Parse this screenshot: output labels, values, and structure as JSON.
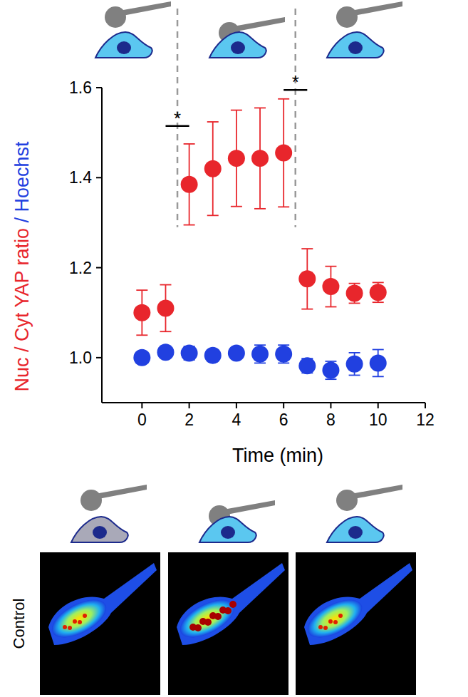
{
  "chart_data": {
    "type": "scatter",
    "xlabel": "Time (min)",
    "ylabel_parts": [
      {
        "text": "Nuc / Cyt YAP ratio",
        "color": "#e8262c"
      },
      {
        "text": " / Hoechst",
        "color": "#2140e0"
      }
    ],
    "xlim": [
      -1.7,
      12
    ],
    "ylim": [
      0.9,
      1.6
    ],
    "xticks": [
      0,
      2,
      4,
      6,
      8,
      10,
      12
    ],
    "yticks": [
      {
        "value": 1,
        "label": "1.0"
      },
      1.2,
      1.4,
      1.6
    ],
    "grid": false,
    "marker": "circle",
    "x": [
      0,
      1,
      2,
      3,
      4,
      5,
      6,
      7,
      8,
      9,
      10
    ],
    "series": [
      {
        "name": "Nuc / Cyt YAP ratio",
        "color": "#e8262c",
        "values": [
          1.1,
          1.11,
          1.385,
          1.42,
          1.443,
          1.443,
          1.455,
          1.175,
          1.158,
          1.143,
          1.145
        ],
        "errors": [
          0.05,
          0.052,
          0.09,
          0.104,
          0.107,
          0.112,
          0.12,
          0.067,
          0.045,
          0.022,
          0.022
        ]
      },
      {
        "name": "Hoechst",
        "color": "#2140e0",
        "values": [
          1.0,
          1.012,
          1.01,
          1.005,
          1.01,
          1.008,
          1.008,
          0.982,
          0.972,
          0.986,
          0.988
        ],
        "errors": [
          0.006,
          0.01,
          0.015,
          0.01,
          0.012,
          0.02,
          0.02,
          0.016,
          0.02,
          0.025,
          0.03
        ]
      }
    ],
    "vlines": {
      "x": [
        1.5,
        6.5
      ],
      "ymin": 1.29
    },
    "significance": [
      {
        "text": "*",
        "x0": 1,
        "x1": 2,
        "y": 1.515
      },
      {
        "text": "*",
        "x0": 6,
        "x1": 7,
        "y": 1.595
      }
    ],
    "image_label": "Control"
  }
}
